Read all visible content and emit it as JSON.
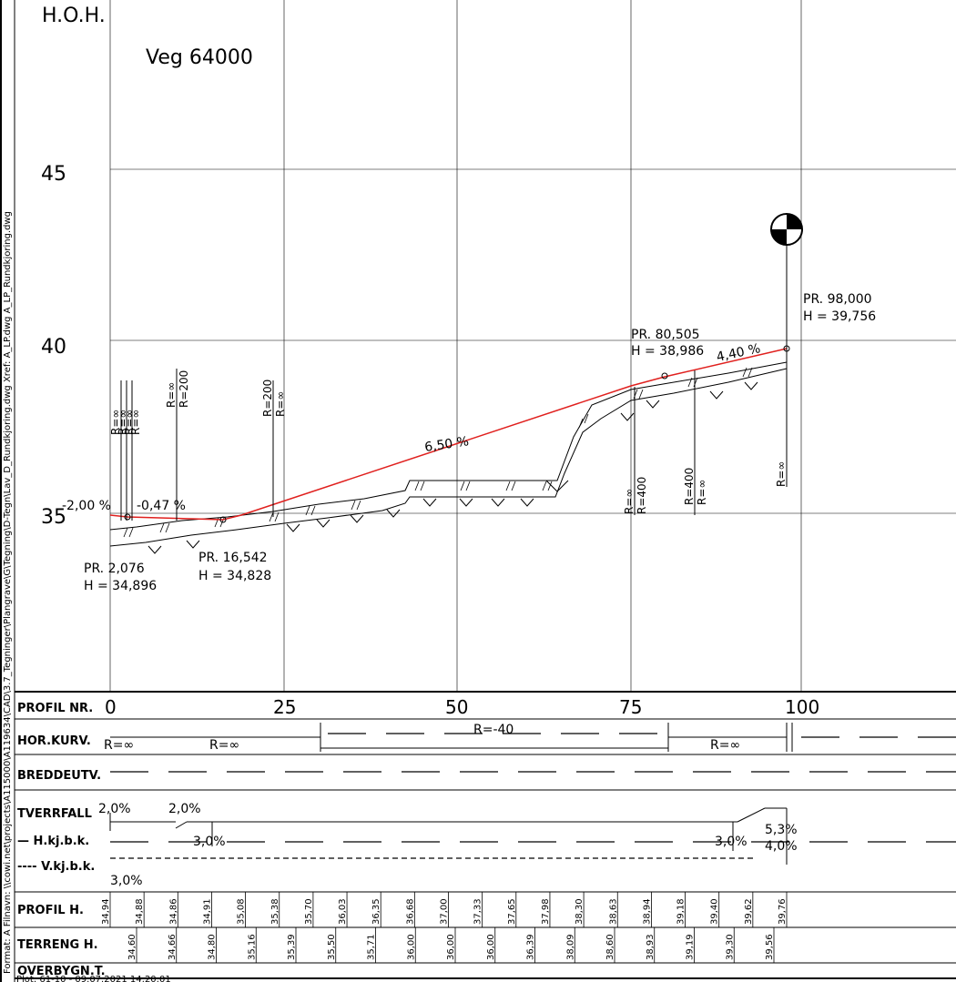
{
  "side_text": "Format: A    Filnavn: \\\\cowi.net\\projects\\A115000\\A119634\\CAD\\3.7_Tegninger\\Plangrave\\G\\Tegning\\D-Tegn\\Lav_D_Rundkjoring.dwg    Xref: A_LP.dwg   A_LP_Rundkjoring.dwg",
  "footer_text": "Plot: 61-10 - 09.07.2021 14:20:01",
  "header": {
    "elevation_label": "H.O.H.",
    "road_name": "Veg 64000"
  },
  "y_ticks": [
    "45",
    "40",
    "35"
  ],
  "curve_labels": {
    "left_group": [
      "R=∞",
      "R=∞",
      "R=∞",
      "R=∞"
    ],
    "r_inf_1": "R=∞",
    "r_200_a": "R=200",
    "r_200_b": "R=200",
    "r_inf_2": "R=∞",
    "r_inf_3": "R=∞",
    "r_400_a": "R=400",
    "r_400_b": "R=400",
    "r_inf_4": "R=∞",
    "r_inf_5": "R=∞"
  },
  "slopes": {
    "s1": "-2,00 %",
    "s2": "-0,47 %",
    "s3": "6,50 %",
    "s4": "4,40 %"
  },
  "stations": {
    "p1": {
      "pr": "PR. 2,076",
      "h": "H = 34,896"
    },
    "p2": {
      "pr": "PR. 16,542",
      "h": "H = 34,828"
    },
    "p3": {
      "pr": "PR. 80,505",
      "h": "H = 38,986"
    },
    "p4": {
      "pr": "PR. 98,000",
      "h": "H = 39,756"
    }
  },
  "table": {
    "rows": [
      "PROFIL NR.",
      "HOR.KURV.",
      "BREDDEUTV.",
      "TVERRFALL",
      "PROFIL H.",
      "TERRENG H.",
      "OVERBYGN.T."
    ],
    "h_kj": "— H.kj.b.k.",
    "v_kj": "---- V.kj.b.k.",
    "profil_nr": [
      "0",
      "25",
      "50",
      "75",
      "100"
    ],
    "hor_kurv": {
      "r1": "R=∞",
      "r2": "R=∞",
      "r3": "R=-40",
      "r4": "R=∞"
    },
    "tverrfall": {
      "t1": "2,0%",
      "t2": "2,0%",
      "t3": "3,0%",
      "t4": "3,0%",
      "t5": "3,0%",
      "t6": "5,3%",
      "t7": "4,0%"
    },
    "profil_h": [
      "34,94",
      "34,88",
      "34,86",
      "34,91",
      "35,08",
      "35,38",
      "35,70",
      "36,03",
      "36,35",
      "36,68",
      "37,00",
      "37,33",
      "37,65",
      "37,98",
      "38,30",
      "38,63",
      "38,94",
      "39,18",
      "39,40",
      "39,62",
      "39,76"
    ],
    "terreng_h": [
      "34,60",
      "34,66",
      "34,80",
      "35,16",
      "35,39",
      "35,50",
      "35,71",
      "36,00",
      "36,00",
      "36,00",
      "36,39",
      "38,09",
      "38,60",
      "38,93",
      "39,19",
      "39,30",
      "39,56"
    ]
  }
}
